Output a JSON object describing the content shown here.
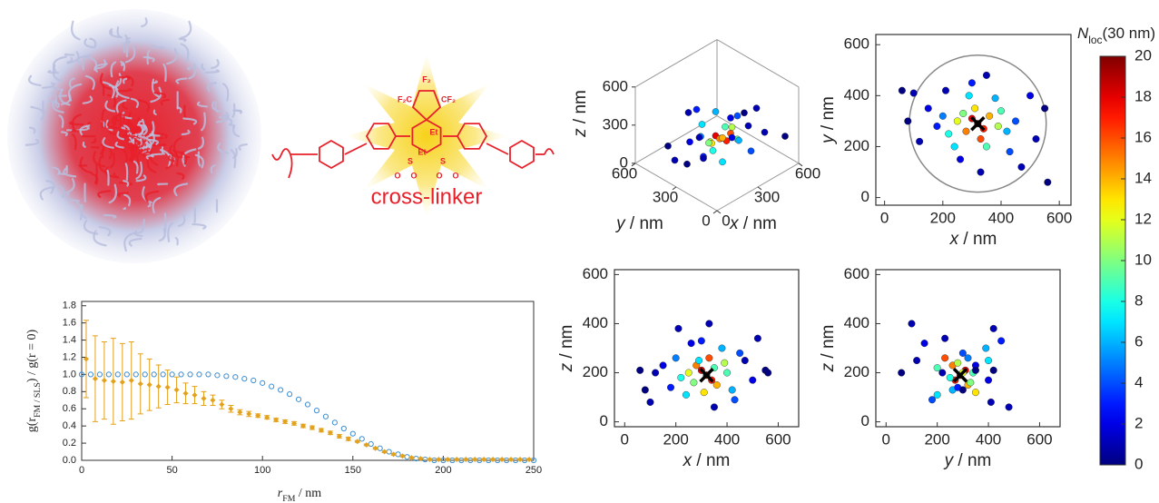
{
  "structure": {
    "labels": [
      "F₂",
      "F₂C",
      "CF₂",
      "Et",
      "Et",
      "S",
      "S",
      "O",
      "O",
      "O",
      "O"
    ],
    "caption": "cross-linker"
  },
  "colorbar": {
    "label": [
      {
        "text": "N",
        "italic": true
      },
      {
        "text": "loc",
        "sub": true
      },
      {
        "text": "(30 nm)"
      }
    ],
    "clim": [
      0,
      20
    ],
    "ticks": [
      0,
      2,
      4,
      6,
      8,
      10,
      12,
      14,
      16,
      18,
      20
    ]
  },
  "chart_data": [
    {
      "type": "line",
      "xlim": [
        0,
        250
      ],
      "ylim": [
        0,
        1.85
      ],
      "xticks": [
        0,
        50,
        100,
        150,
        200,
        250
      ],
      "yticks": [
        {
          "value": 0,
          "label": "0.0"
        },
        0.2,
        0.4,
        0.6,
        0.8,
        {
          "value": 1,
          "label": "1.0"
        },
        1.2,
        1.4,
        1.6,
        1.8
      ],
      "xlabel": [
        {
          "text": "r",
          "italic": true
        },
        {
          "text": "FM",
          "sub": true
        },
        {
          "text": " / nm"
        }
      ],
      "ylabel": [
        {
          "text": "g(r"
        },
        {
          "text": "FM / SLS",
          "sub": true
        },
        {
          "text": ") / g(r = 0)"
        }
      ],
      "series": [
        {
          "color": "#3a8fd6",
          "marker": "circle",
          "x": [
            0,
            5,
            10,
            15,
            20,
            25,
            30,
            35,
            40,
            45,
            50,
            55,
            60,
            65,
            70,
            75,
            80,
            85,
            90,
            95,
            100,
            105,
            110,
            115,
            120,
            125,
            130,
            135,
            140,
            145,
            150,
            155,
            160,
            165,
            170,
            175,
            180,
            185,
            190,
            195,
            200,
            205,
            210,
            215,
            220,
            225,
            230,
            235,
            240,
            245,
            250
          ],
          "values": [
            1,
            1,
            1,
            1,
            1,
            1,
            1,
            1,
            1,
            1,
            1,
            1,
            1,
            1,
            1,
            0.99,
            0.98,
            0.97,
            0.95,
            0.93,
            0.9,
            0.86,
            0.82,
            0.77,
            0.71,
            0.65,
            0.58,
            0.51,
            0.44,
            0.37,
            0.31,
            0.25,
            0.19,
            0.14,
            0.1,
            0.07,
            0.04,
            0.02,
            0.01,
            0,
            0,
            0,
            0,
            0,
            0,
            0,
            0,
            0,
            0,
            0,
            0
          ]
        },
        {
          "color": "#e3a11c",
          "marker": "diamond",
          "x": [
            2.5,
            7.5,
            12.5,
            17.5,
            22.5,
            27.5,
            32.5,
            37.5,
            42.5,
            47.5,
            52.5,
            57.5,
            62.5,
            67.5,
            72.5,
            77.5,
            82.5,
            87.5,
            92.5,
            97.5,
            102.5,
            107.5,
            112.5,
            117.5,
            122.5,
            127.5,
            132.5,
            137.5,
            142.5,
            147.5,
            152.5,
            157.5,
            162.5,
            167.5,
            172.5,
            177.5,
            182.5,
            187.5,
            192.5,
            197.5,
            202.5,
            207.5,
            212.5,
            217.5,
            222.5,
            227.5,
            232.5,
            237.5,
            242.5,
            247.5
          ],
          "values": [
            1.18,
            0.95,
            0.93,
            0.92,
            0.91,
            0.93,
            0.89,
            0.88,
            0.86,
            0.85,
            0.82,
            0.78,
            0.76,
            0.72,
            0.7,
            0.65,
            0.6,
            0.56,
            0.54,
            0.52,
            0.5,
            0.47,
            0.45,
            0.43,
            0.4,
            0.38,
            0.35,
            0.32,
            0.28,
            0.25,
            0.22,
            0.18,
            0.14,
            0.1,
            0.07,
            0.05,
            0.03,
            0.02,
            0.01,
            0.01,
            0.01,
            0.01,
            0.01,
            0.01,
            0.01,
            0.01,
            0.01,
            0.01,
            0.01,
            0.01
          ],
          "errors": [
            0.45,
            0.5,
            0.45,
            0.5,
            0.45,
            0.45,
            0.35,
            0.3,
            0.25,
            0.2,
            0.15,
            0.12,
            0.1,
            0.08,
            0.06,
            0.05,
            0.04,
            0.03,
            0.03,
            0.02,
            0.02,
            0.02,
            0.02,
            0.02,
            0.02,
            0.02,
            0.02,
            0.02,
            0.02,
            0.02,
            0.01,
            0.01,
            0.01,
            0.01,
            0.01,
            0.01,
            0.01,
            0.01,
            0.01,
            0.01,
            0.01,
            0.01,
            0.01,
            0.01,
            0.01,
            0.01,
            0.01,
            0.01,
            0.01,
            0.01
          ]
        }
      ]
    },
    {
      "type": "scatter3d",
      "xlim": [
        0,
        600
      ],
      "ylim": [
        0,
        600
      ],
      "zlim": [
        0,
        600
      ],
      "xticks": [
        0,
        300,
        600
      ],
      "yticks": [
        0,
        300,
        600
      ],
      "zticks": [
        0,
        300,
        600
      ],
      "xlabel": [
        {
          "text": "x",
          "italic": true
        },
        {
          "text": " / nm"
        }
      ],
      "ylabel": [
        {
          "text": "y",
          "italic": true
        },
        {
          "text": " / nm"
        }
      ],
      "zlabel": [
        {
          "text": "z",
          "italic": true
        },
        {
          "text": " / nm"
        }
      ],
      "x": [
        320,
        300,
        340,
        280,
        360,
        250,
        390,
        310,
        330,
        270,
        400,
        220,
        350,
        290,
        420,
        200,
        380,
        240,
        450,
        180,
        300,
        430,
        150,
        500,
        260,
        350,
        120,
        520,
        210,
        470,
        80,
        550,
        330,
        100,
        560,
        60
      ],
      "y": [
        290,
        310,
        270,
        260,
        320,
        300,
        280,
        350,
        230,
        330,
        340,
        250,
        200,
        400,
        260,
        320,
        390,
        200,
        300,
        280,
        450,
        180,
        350,
        400,
        150,
        480,
        220,
        230,
        420,
        120,
        300,
        350,
        100,
        410,
        60,
        420
      ],
      "z": [
        190,
        210,
        170,
        230,
        150,
        200,
        240,
        120,
        260,
        160,
        200,
        180,
        220,
        250,
        130,
        260,
        300,
        110,
        280,
        140,
        330,
        90,
        230,
        170,
        320,
        60,
        200,
        340,
        380,
        250,
        130,
        210,
        400,
        80,
        200,
        210
      ],
      "c": [
        20,
        18,
        17,
        15,
        14,
        12,
        11,
        13,
        16,
        10,
        9,
        8,
        9,
        7,
        6,
        5,
        6,
        7,
        4,
        3,
        3,
        4,
        2,
        2,
        2,
        1,
        1,
        1,
        1,
        1,
        0,
        0,
        1,
        1,
        0,
        0
      ]
    },
    {
      "type": "scatter",
      "xlim": [
        -30,
        640
      ],
      "ylim": [
        -30,
        640
      ],
      "xticks": [
        0,
        200,
        400,
        600
      ],
      "yticks": [
        0,
        200,
        400,
        600
      ],
      "xlabel": [
        {
          "text": "x",
          "italic": true
        },
        {
          "text": " / nm"
        }
      ],
      "ylabel": [
        {
          "text": "y",
          "italic": true
        },
        {
          "text": " / nm"
        }
      ],
      "marker": [
        320,
        290
      ],
      "circle": {
        "cx": 320,
        "cy": 290,
        "r": 235
      },
      "x": [
        320,
        300,
        340,
        280,
        360,
        250,
        390,
        310,
        330,
        270,
        400,
        220,
        350,
        290,
        420,
        200,
        380,
        240,
        450,
        180,
        300,
        430,
        150,
        500,
        260,
        350,
        120,
        520,
        210,
        470,
        80,
        550,
        330,
        100,
        560,
        60
      ],
      "y": [
        290,
        310,
        270,
        260,
        320,
        300,
        280,
        350,
        230,
        330,
        340,
        250,
        200,
        400,
        260,
        320,
        390,
        200,
        300,
        280,
        450,
        180,
        350,
        400,
        150,
        480,
        220,
        230,
        420,
        120,
        300,
        350,
        100,
        410,
        60,
        420
      ],
      "c": [
        20,
        18,
        17,
        15,
        14,
        12,
        11,
        13,
        16,
        10,
        9,
        8,
        9,
        7,
        6,
        5,
        6,
        7,
        4,
        3,
        3,
        4,
        2,
        2,
        2,
        1,
        1,
        1,
        1,
        1,
        0,
        0,
        1,
        1,
        0,
        0
      ]
    },
    {
      "type": "scatter",
      "xlim": [
        -40,
        680
      ],
      "ylim": [
        -20,
        620
      ],
      "xticks": [
        0,
        200,
        400,
        600
      ],
      "yticks": [
        0,
        200,
        400,
        600
      ],
      "xlabel": [
        {
          "text": "x",
          "italic": true
        },
        {
          "text": " / nm"
        }
      ],
      "ylabel": [
        {
          "text": "z",
          "italic": true
        },
        {
          "text": " / nm"
        }
      ],
      "marker": [
        320,
        190
      ],
      "x": [
        320,
        300,
        340,
        280,
        360,
        250,
        390,
        310,
        330,
        270,
        400,
        220,
        350,
        290,
        420,
        200,
        380,
        240,
        450,
        180,
        300,
        430,
        150,
        500,
        260,
        350,
        120,
        520,
        210,
        470,
        80,
        550,
        330,
        100,
        560,
        60
      ],
      "y": [
        190,
        210,
        170,
        230,
        150,
        200,
        240,
        120,
        260,
        160,
        200,
        180,
        220,
        250,
        130,
        260,
        300,
        110,
        280,
        140,
        330,
        90,
        230,
        170,
        320,
        60,
        200,
        340,
        380,
        250,
        130,
        210,
        400,
        80,
        200,
        210
      ],
      "c": [
        20,
        18,
        17,
        15,
        14,
        12,
        11,
        13,
        16,
        10,
        9,
        8,
        9,
        7,
        6,
        5,
        6,
        7,
        4,
        3,
        3,
        4,
        2,
        2,
        2,
        1,
        1,
        1,
        1,
        1,
        0,
        0,
        1,
        1,
        0,
        0
      ]
    },
    {
      "type": "scatter",
      "xlim": [
        -40,
        680
      ],
      "ylim": [
        -20,
        620
      ],
      "xticks": [
        0,
        200,
        400,
        600
      ],
      "yticks": [
        0,
        200,
        400,
        600
      ],
      "xlabel": [
        {
          "text": "y",
          "italic": true
        },
        {
          "text": " / nm"
        }
      ],
      "ylabel": [
        {
          "text": "z",
          "italic": true
        },
        {
          "text": " / nm"
        }
      ],
      "marker": [
        290,
        190
      ],
      "x": [
        290,
        310,
        270,
        260,
        320,
        300,
        280,
        350,
        230,
        330,
        340,
        250,
        200,
        400,
        260,
        320,
        390,
        200,
        300,
        280,
        450,
        180,
        350,
        400,
        150,
        480,
        220,
        230,
        420,
        120,
        300,
        350,
        100,
        410,
        60,
        420
      ],
      "y": [
        190,
        210,
        170,
        230,
        150,
        200,
        240,
        120,
        260,
        160,
        200,
        180,
        220,
        250,
        130,
        260,
        300,
        110,
        280,
        140,
        330,
        90,
        230,
        170,
        320,
        60,
        200,
        340,
        380,
        250,
        130,
        210,
        400,
        80,
        200,
        210
      ],
      "c": [
        20,
        18,
        17,
        15,
        14,
        12,
        11,
        13,
        16,
        10,
        9,
        8,
        9,
        7,
        6,
        5,
        6,
        7,
        4,
        3,
        3,
        4,
        2,
        2,
        2,
        1,
        1,
        1,
        1,
        1,
        0,
        0,
        1,
        1,
        0,
        0
      ]
    }
  ]
}
